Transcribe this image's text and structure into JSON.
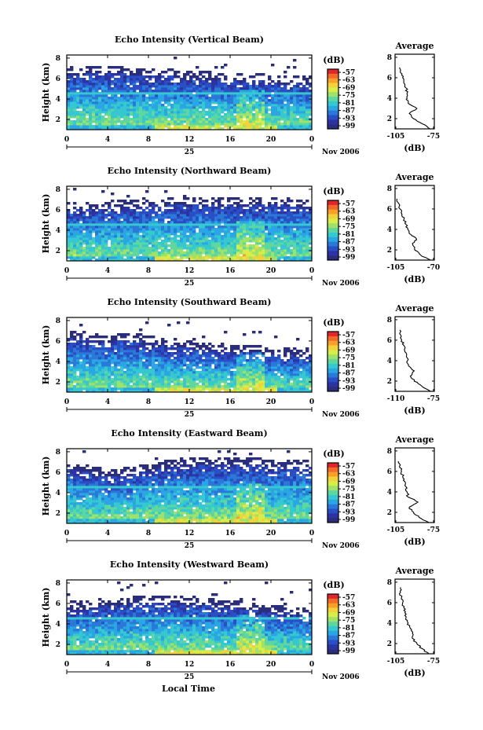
{
  "figure": {
    "colorbar_unit": "(dB)",
    "colorbar_ticks": [
      "-57",
      "-63",
      "-69",
      "-75",
      "-81",
      "-87",
      "-93",
      "-99"
    ],
    "colorbar_colors": [
      "#e0262a",
      "#f26a2a",
      "#f6a02a",
      "#f2d23a",
      "#d8ec4a",
      "#9ee26a",
      "#5ed6a0",
      "#36c8d0",
      "#2aa6e4",
      "#2a78d8",
      "#2a4ec6",
      "#2c34a4",
      "#2a2c7c"
    ],
    "x_ticks": [
      "0",
      "4",
      "8",
      "12",
      "16",
      "20",
      "0"
    ],
    "date_day": "25",
    "date_month": "Nov 2006",
    "x_label": "Local Time",
    "y_label": "Height (km)",
    "y_ticks": [
      "2",
      "4",
      "6",
      "8"
    ],
    "profile_title": "Average",
    "profile_x_label": "(dB)"
  },
  "chart_data": [
    {
      "type": "heatmap",
      "title": "Echo Intensity (Vertical Beam)",
      "xlim": [
        0,
        24
      ],
      "ylim": [
        1,
        8.3
      ],
      "top_height_km": [
        6.6,
        6.55,
        6.5,
        6.4,
        6.3,
        6.2,
        6.1,
        6.0,
        5.9,
        5.8,
        5.7,
        5.6,
        5.5
      ],
      "profile": {
        "type": "line",
        "title": "Average",
        "xlabel": "(dB)",
        "x_ticks": [
          "-105",
          "-75"
        ],
        "xlim": [
          -108,
          -72
        ],
        "height_km": [
          1.0,
          1.5,
          2.0,
          2.5,
          3.0,
          3.5,
          4.0,
          4.5,
          5.0,
          5.5,
          6.0,
          6.5,
          7.0
        ],
        "db": [
          -76,
          -83,
          -91,
          -95,
          -88,
          -96,
          -97,
          -97,
          -98,
          -100,
          -101,
          -103,
          -104
        ]
      }
    },
    {
      "type": "heatmap",
      "title": "Echo Intensity (Northward Beam)",
      "xlim": [
        0,
        24
      ],
      "ylim": [
        1,
        8.3
      ],
      "top_height_km": [
        6.0,
        6.1,
        6.2,
        6.3,
        6.5,
        6.6,
        6.6,
        6.6,
        6.6,
        6.5,
        6.5,
        6.4,
        6.4
      ],
      "profile": {
        "type": "line",
        "title": "Average",
        "xlabel": "(dB)",
        "x_ticks": [
          "-105",
          "-70"
        ],
        "xlim": [
          -108,
          -68
        ],
        "height_km": [
          1.0,
          1.5,
          2.0,
          2.5,
          3.0,
          3.5,
          4.0,
          4.5,
          5.0,
          5.5,
          6.0,
          6.5,
          7.0
        ],
        "db": [
          -72,
          -82,
          -88,
          -90,
          -86,
          -92,
          -95,
          -97,
          -99,
          -101,
          -103,
          -104,
          -106
        ]
      }
    },
    {
      "type": "heatmap",
      "title": "Echo Intensity (Southward Beam)",
      "xlim": [
        0,
        24
      ],
      "ylim": [
        1,
        8.3
      ],
      "top_height_km": [
        6.3,
        6.2,
        5.9,
        6.2,
        5.8,
        5.6,
        5.3,
        5.1,
        5.0,
        4.9,
        4.7,
        4.6,
        4.5
      ],
      "profile": {
        "type": "line",
        "title": "Average",
        "xlabel": "(dB)",
        "x_ticks": [
          "-110",
          "-75"
        ],
        "xlim": [
          -113,
          -72
        ],
        "height_km": [
          1.0,
          1.5,
          2.0,
          2.5,
          3.0,
          3.5,
          4.0,
          4.5,
          5.0,
          5.5,
          6.0,
          6.5,
          7.0
        ],
        "db": [
          -76,
          -85,
          -93,
          -97,
          -93,
          -99,
          -100,
          -101,
          -103,
          -104,
          -106,
          -107,
          -108
        ]
      }
    },
    {
      "type": "heatmap",
      "title": "Echo Intensity (Eastward Beam)",
      "xlim": [
        0,
        24
      ],
      "ylim": [
        1,
        8.3
      ],
      "top_height_km": [
        6.4,
        6.0,
        5.6,
        5.8,
        6.3,
        6.6,
        6.7,
        6.8,
        6.8,
        6.7,
        6.6,
        6.5,
        6.5
      ],
      "profile": {
        "type": "line",
        "title": "Average",
        "xlabel": "(dB)",
        "x_ticks": [
          "-105",
          "-75"
        ],
        "xlim": [
          -108,
          -72
        ],
        "height_km": [
          1.0,
          1.5,
          2.0,
          2.5,
          3.0,
          3.5,
          4.0,
          4.5,
          5.0,
          5.5,
          6.0,
          6.5,
          7.0
        ],
        "db": [
          -77,
          -86,
          -91,
          -95,
          -87,
          -96,
          -97,
          -98,
          -99,
          -101,
          -102,
          -104,
          -105
        ]
      }
    },
    {
      "type": "heatmap",
      "title": "Echo Intensity (Westward Beam)",
      "xlim": [
        0,
        24
      ],
      "ylim": [
        1,
        8.3
      ],
      "top_height_km": [
        5.5,
        5.7,
        5.8,
        6.0,
        6.1,
        6.2,
        6.0,
        5.8,
        5.6,
        5.4,
        5.2,
        5.0,
        4.9
      ],
      "profile": {
        "type": "line",
        "title": "Average",
        "xlabel": "(dB)",
        "x_ticks": [
          "-105",
          "-75"
        ],
        "xlim": [
          -108,
          -72
        ],
        "height_km": [
          1.0,
          1.5,
          2.0,
          2.5,
          3.0,
          3.5,
          4.0,
          4.5,
          5.0,
          5.5,
          6.0,
          6.5,
          7.0,
          7.5
        ],
        "db": [
          -77,
          -83,
          -88,
          -92,
          -92,
          -94,
          -96,
          -98,
          -99,
          -100,
          -101,
          -102,
          -103,
          -103
        ]
      }
    }
  ]
}
